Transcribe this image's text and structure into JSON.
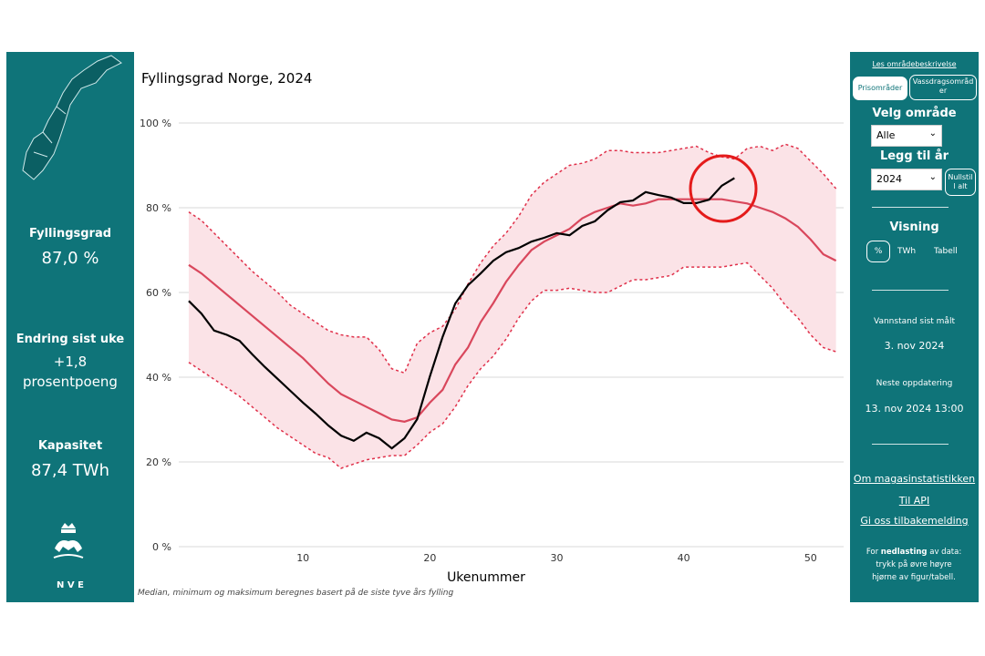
{
  "left_panel": {
    "fill_label": "Fyllingsgrad",
    "fill_value": "87,0 %",
    "change_label": "Endring sist uke",
    "change_value": "+1,8",
    "change_unit": "prosentpoeng",
    "capacity_label": "Kapasitet",
    "capacity_value": "87,4 TWh",
    "logo_text": "N V E"
  },
  "right_panel": {
    "area_link": "Les områdebeskrivelse",
    "tab_price": "Prisområder",
    "tab_watershed": "Vassdragsområder",
    "area_heading": "Velg område",
    "area_value": "Alle",
    "year_heading": "Legg til år",
    "year_value": "2024",
    "reset": "Nullstill alt",
    "view_heading": "Visning",
    "view_options": [
      "%",
      "TWh",
      "Tabell"
    ],
    "measured_label": "Vannstand sist målt",
    "measured_value": "3. nov 2024",
    "next_label": "Neste oppdatering",
    "next_value": "13. nov 2024 13:00",
    "links": [
      "Om magasinstatistikken",
      "Til API",
      "Gi oss tilbakemelding"
    ],
    "download_pre": "For",
    "download_bold": "nedlasting",
    "download_post": "av data: trykk på øvre høyre hjørne av figur/tabell."
  },
  "chart_data": {
    "type": "line",
    "title": "Fyllingsgrad Norge, 2024",
    "xlabel": "Ukenummer",
    "footnote": "Median, minimum og maksimum beregnes basert på de siste tyve års fylling",
    "x": [
      1,
      2,
      3,
      4,
      5,
      6,
      7,
      8,
      9,
      10,
      11,
      12,
      13,
      14,
      15,
      16,
      17,
      18,
      19,
      20,
      21,
      22,
      23,
      24,
      25,
      26,
      27,
      28,
      29,
      30,
      31,
      32,
      33,
      34,
      35,
      36,
      37,
      38,
      39,
      40,
      41,
      42,
      43,
      44,
      45,
      46,
      47,
      48,
      49,
      50,
      51,
      52
    ],
    "xlim": [
      -1.8,
      52.6
    ],
    "xticks": [
      10,
      20,
      30,
      40,
      50
    ],
    "ylim": [
      0,
      100
    ],
    "yticks": [
      {
        "value": 0,
        "label": "0 %"
      },
      {
        "value": 20,
        "label": "20 %"
      },
      {
        "value": 40,
        "label": "40 %"
      },
      {
        "value": 60,
        "label": "60 %"
      },
      {
        "value": 80,
        "label": "80 %"
      },
      {
        "value": 100,
        "label": "100 %"
      }
    ],
    "grid": true,
    "band_color": "#fbe3e7",
    "series": [
      {
        "color": "#d9475c",
        "style": "solid",
        "values": [
          66.5,
          64.5,
          62,
          59.5,
          57,
          54.5,
          52,
          49.5,
          47,
          44.5,
          41.5,
          38.5,
          36,
          34.5,
          33,
          31.5,
          30,
          29.5,
          30.5,
          34,
          37,
          43,
          47,
          53,
          57.5,
          62.5,
          66.5,
          70,
          72,
          73.5,
          75,
          77.5,
          79,
          80,
          81,
          80.5,
          81,
          82,
          82,
          82,
          82,
          82,
          82,
          81.5,
          81,
          80,
          79,
          77.5,
          75.5,
          72.5,
          69,
          67.5
        ]
      },
      {
        "color": "#e0304a",
        "style": "dotted",
        "values": [
          79,
          77,
          74,
          71,
          68,
          65,
          62.5,
          60,
          57,
          55,
          53,
          51,
          50,
          49.5,
          49.5,
          46.5,
          42,
          41,
          48,
          50.5,
          52,
          56,
          62,
          67,
          71,
          74,
          78,
          83,
          86,
          88,
          90,
          90.5,
          91.5,
          93.5,
          93.5,
          93,
          93,
          93,
          93.5,
          94,
          94.5,
          93,
          92,
          91.5,
          94,
          94.5,
          93.5,
          95,
          94,
          91,
          88,
          84.5
        ]
      },
      {
        "color": "#e0304a",
        "style": "dotted",
        "values": [
          43.5,
          41.5,
          39.5,
          37.5,
          35.5,
          33,
          30.5,
          28,
          26,
          24,
          22,
          21,
          18.5,
          19.5,
          20.5,
          21,
          21.5,
          21.5,
          24,
          27,
          29,
          33,
          38,
          42,
          45,
          49,
          54,
          58,
          60.5,
          60.5,
          61,
          60.5,
          60,
          60,
          61.5,
          63,
          63,
          63.5,
          64,
          66,
          66,
          66,
          66,
          66.5,
          67,
          64,
          61,
          57,
          54,
          50,
          47,
          46
        ]
      },
      {
        "color": "#000000",
        "style": "solid",
        "values": [
          58,
          55,
          51,
          50,
          48.6,
          45.4,
          42.4,
          39.6,
          36.8,
          34,
          31.4,
          28.6,
          26.2,
          25,
          26.9,
          25.6,
          23.2,
          25.6,
          30.1,
          40.2,
          49.5,
          57.4,
          61.7,
          64.5,
          67.5,
          69.5,
          70.5,
          72,
          72.9,
          74,
          73.5,
          75.7,
          76.8,
          79.4,
          81.3,
          81.7,
          83.7,
          83,
          82.4,
          81.1,
          81.1,
          81.9,
          85.2,
          87,
          null,
          null,
          null,
          null,
          null,
          null,
          null,
          null
        ]
      }
    ]
  }
}
